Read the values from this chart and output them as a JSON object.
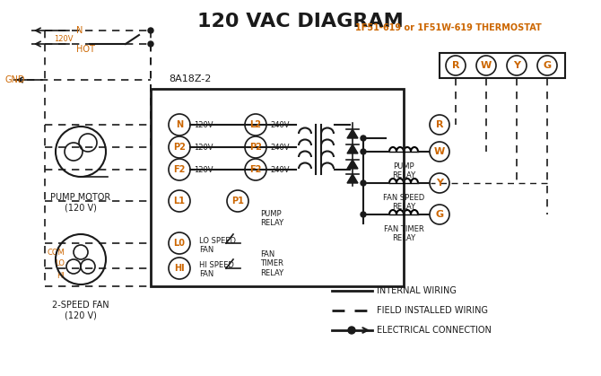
{
  "title": "120 VAC DIAGRAM",
  "title_fontsize": 16,
  "title_color": "#1a1a1a",
  "bg_color": "#ffffff",
  "thermostat_label": "1F51-619 or 1F51W-619 THERMOSTAT",
  "thermostat_color": "#cc6600",
  "control_board_label": "8A18Z-2",
  "pump_motor_label": "PUMP MOTOR\n(120 V)",
  "fan_label": "2-SPEED FAN\n(120 V)",
  "legend_items": [
    {
      "label": "INTERNAL WIRING",
      "style": "solid"
    },
    {
      "label": "FIELD INSTALLED WIRING",
      "style": "dashed"
    },
    {
      "label": "ELECTRICAL CONNECTION",
      "style": "dot"
    }
  ],
  "orange_color": "#cc6600",
  "black_color": "#1a1a1a",
  "line_color": "#1a1a1a"
}
